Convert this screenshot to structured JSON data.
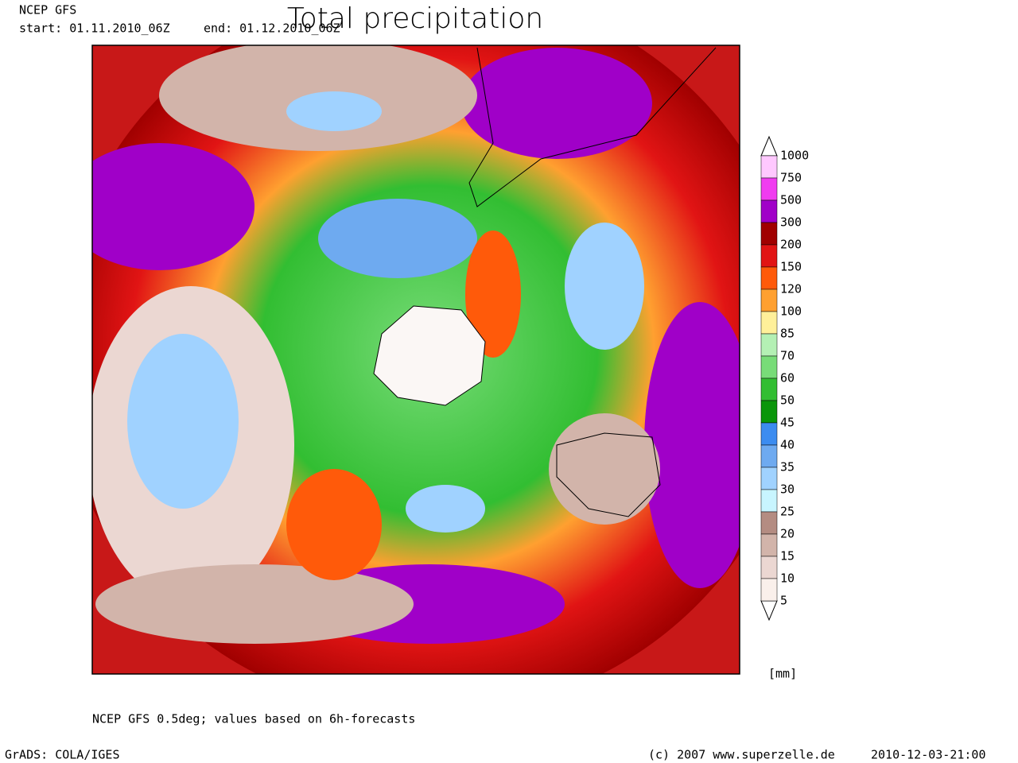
{
  "header": {
    "model": "NCEP GFS",
    "start": "start: 01.11.2010_06Z",
    "end": "end: 01.12.2010_06Z",
    "title": "Total precipitation"
  },
  "colorbar": {
    "levels": [
      1000,
      750,
      500,
      300,
      200,
      150,
      120,
      100,
      85,
      70,
      60,
      50,
      45,
      40,
      35,
      30,
      25,
      20,
      15,
      10,
      5
    ],
    "colors": [
      "#ffc8ff",
      "#f03cf0",
      "#a000c8",
      "#a00000",
      "#e11414",
      "#ff5a0a",
      "#ffa030",
      "#fff09a",
      "#b4f0b4",
      "#78dc78",
      "#32be32",
      "#0a960a",
      "#3c8cf0",
      "#6eaaf0",
      "#a0d2ff",
      "#c8f5ff",
      "#b48c82",
      "#d2b4aa",
      "#ebd7d2",
      "#faf0eb"
    ],
    "unit": "[mm]"
  },
  "footer": {
    "note": "NCEP GFS 0.5deg; values based on 6h-forecasts",
    "software": "GrADS: COLA/IGES",
    "copyright": "(c) 2007 www.superzelle.de",
    "timestamp": "2010-12-03-21:00"
  }
}
